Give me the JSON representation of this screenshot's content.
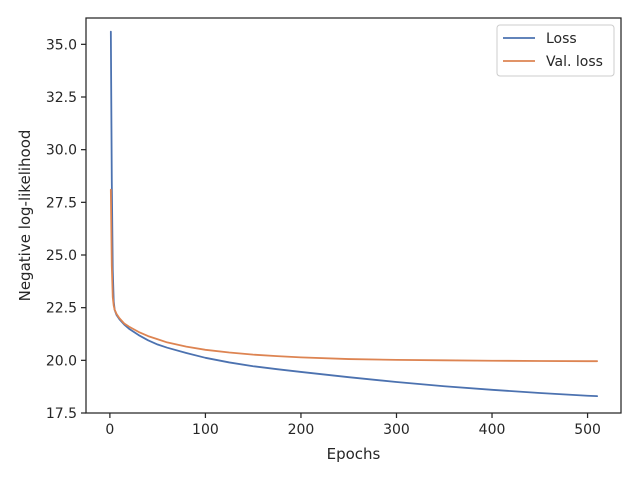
{
  "chart_data": {
    "type": "line",
    "xlabel": "Epochs",
    "ylabel": "Negative log-likelihood",
    "xlim": [
      -25,
      535
    ],
    "ylim": [
      17.5,
      36.25
    ],
    "xticks": [
      0,
      100,
      200,
      300,
      400,
      500
    ],
    "yticks": [
      17.5,
      20.0,
      22.5,
      25.0,
      27.5,
      30.0,
      32.5,
      35.0
    ],
    "ytick_labels": [
      "17.5",
      "20.0",
      "22.5",
      "25.0",
      "27.5",
      "30.0",
      "32.5",
      "35.0"
    ],
    "grid": false,
    "legend_position": "top-right",
    "series": [
      {
        "name": "Loss",
        "color": "#4c72b0",
        "x": [
          1,
          2,
          3,
          4,
          5,
          7,
          10,
          15,
          20,
          30,
          40,
          50,
          60,
          80,
          100,
          125,
          150,
          175,
          200,
          250,
          300,
          350,
          400,
          450,
          500,
          510
        ],
        "y": [
          35.6,
          28.5,
          24.3,
          22.8,
          22.4,
          22.15,
          21.95,
          21.7,
          21.5,
          21.2,
          20.95,
          20.75,
          20.6,
          20.35,
          20.12,
          19.9,
          19.72,
          19.58,
          19.45,
          19.2,
          18.97,
          18.77,
          18.6,
          18.45,
          18.32,
          18.3
        ]
      },
      {
        "name": "Val. loss",
        "color": "#dd8452",
        "x": [
          1,
          2,
          3,
          4,
          5,
          7,
          10,
          15,
          20,
          30,
          40,
          50,
          60,
          80,
          100,
          125,
          150,
          175,
          200,
          250,
          300,
          350,
          400,
          450,
          500,
          510
        ],
        "y": [
          28.1,
          24.5,
          23.0,
          22.6,
          22.4,
          22.2,
          22.0,
          21.75,
          21.6,
          21.35,
          21.15,
          21.0,
          20.85,
          20.65,
          20.5,
          20.37,
          20.27,
          20.2,
          20.14,
          20.06,
          20.02,
          20.0,
          19.98,
          19.97,
          19.96,
          19.96
        ]
      }
    ]
  }
}
